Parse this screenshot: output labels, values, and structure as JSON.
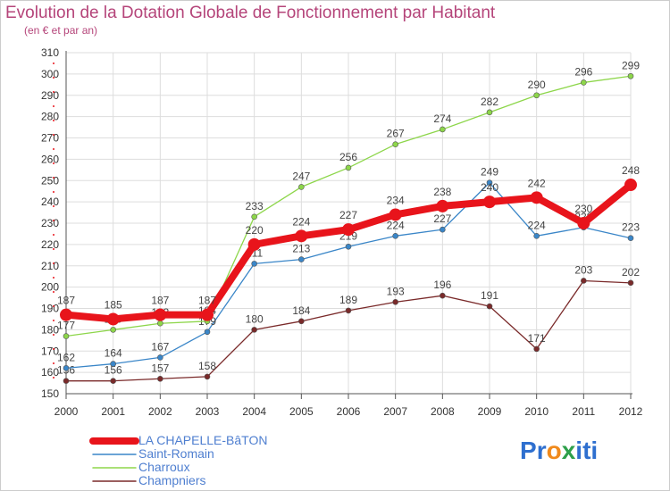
{
  "header": {
    "title": "Evolution de la Dotation Globale de Fonctionnement par Habitant",
    "subtitle": "(en € et par an)"
  },
  "brand": {
    "name": "Proxiti",
    "letters": [
      "P",
      "r",
      "o",
      "x",
      "i",
      "t",
      "i"
    ],
    "colors": [
      "#2e6fcf",
      "#2e6fcf",
      "#f08a1c",
      "#2ea04a",
      "#2e6fcf",
      "#2e6fcf",
      "#2e6fcf"
    ]
  },
  "chart_data": {
    "type": "line",
    "title": "Evolution de la Dotation Globale de Fonctionnement par Habitant",
    "subtitle": "(en € et par an)",
    "xlabel": "",
    "ylabel": "",
    "x": [
      "2000",
      "2001",
      "2002",
      "2003",
      "2004",
      "2005",
      "2006",
      "2007",
      "2008",
      "2009",
      "2010",
      "2011",
      "2012"
    ],
    "ylim": [
      150,
      310
    ],
    "yticks": [
      150,
      160,
      170,
      180,
      190,
      200,
      210,
      220,
      230,
      240,
      250,
      260,
      270,
      280,
      290,
      300,
      310
    ],
    "grid": true,
    "legend_position": "bottom-left",
    "series": [
      {
        "name": "LA CHAPELLE-BâTON",
        "color": "#e8141b",
        "values": [
          187,
          185,
          187,
          187,
          220,
          224,
          227,
          234,
          238,
          240,
          242,
          230,
          248
        ]
      },
      {
        "name": "Saint-Romain",
        "color": "#3a86c8",
        "values": [
          162,
          164,
          167,
          179,
          211,
          213,
          219,
          224,
          227,
          249,
          224,
          228,
          223
        ]
      },
      {
        "name": "Charroux",
        "color": "#8dd64a",
        "values": [
          177,
          180,
          183,
          184,
          233,
          247,
          256,
          267,
          274,
          282,
          290,
          296,
          299
        ]
      },
      {
        "name": "Champniers",
        "color": "#7a2a2a",
        "values": [
          156,
          156,
          157,
          158,
          180,
          184,
          189,
          193,
          196,
          191,
          171,
          203,
          202
        ]
      }
    ]
  }
}
